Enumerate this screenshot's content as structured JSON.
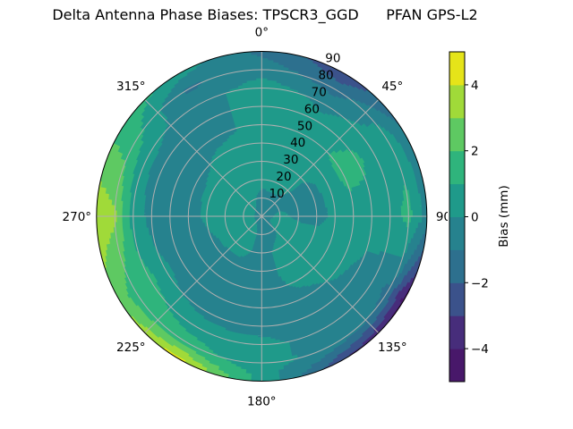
{
  "chart_data": {
    "type": "heatmap",
    "subtype": "polar-filled-contour",
    "title": "Delta Antenna Phase Biases: TPSCR3_GGD      PFAN GPS-L2",
    "theta_direction": "clockwise",
    "theta_zero": "top",
    "theta_tick_labels": [
      "0°",
      "45°",
      "90°",
      "135°",
      "180°",
      "225°",
      "270°",
      "315°"
    ],
    "theta_ticks": [
      0,
      45,
      90,
      135,
      180,
      225,
      270,
      315
    ],
    "r_tick_labels": [
      "10",
      "20",
      "30",
      "40",
      "50",
      "60",
      "70",
      "80",
      "90"
    ],
    "r_ticks": [
      10,
      20,
      30,
      40,
      50,
      60,
      70,
      80,
      90
    ],
    "rlim": [
      0,
      90
    ],
    "grid": true,
    "colorbar": {
      "label": "Bias (mm)",
      "levels": [
        -5,
        -4,
        -3,
        -2,
        -1,
        0,
        1,
        2,
        3,
        4,
        5
      ],
      "tick_values": [
        -4,
        -2,
        0,
        2,
        4
      ],
      "tick_labels": [
        "−4",
        "−2",
        "0",
        "2",
        "4"
      ],
      "colors": [
        "#48186a",
        "#472d7b",
        "#3b528b",
        "#2d708e",
        "#26828e",
        "#1f9a8a",
        "#2fb47c",
        "#5ec962",
        "#a0da39",
        "#e5e419"
      ]
    },
    "grid_azimuth": [
      0,
      30,
      60,
      90,
      120,
      150,
      180,
      210,
      240,
      270,
      300,
      330
    ],
    "grid_radius": [
      0,
      10,
      20,
      30,
      40,
      50,
      60,
      70,
      80,
      90
    ],
    "values": [
      [
        -0.3,
        -0.3,
        -0.3,
        -0.3,
        -0.3,
        -0.3,
        -0.3,
        -0.3,
        -0.3,
        -0.3,
        -0.3,
        -0.3
      ],
      [
        -0.3,
        -0.3,
        -0.2,
        0.2,
        0.3,
        -0.3,
        -0.3,
        0.3,
        0.5,
        0.5,
        0.4,
        0.2
      ],
      [
        0.3,
        0.5,
        -0.3,
        -0.2,
        0.5,
        0.3,
        -0.4,
        0.3,
        0.4,
        0.6,
        0.5,
        0.5
      ],
      [
        0.2,
        0.5,
        -0.2,
        -0.3,
        0.5,
        0.5,
        -0.5,
        -0.3,
        -0.3,
        0.2,
        0.3,
        0.6
      ],
      [
        0.3,
        0.4,
        0.3,
        0.2,
        0.6,
        0.2,
        -0.5,
        -0.5,
        -0.5,
        -0.5,
        -0.4,
        0.3
      ],
      [
        0.4,
        0.5,
        1.4,
        0.5,
        0.3,
        -0.3,
        -0.5,
        -0.5,
        -0.4,
        -0.5,
        -0.5,
        -0.4
      ],
      [
        0.5,
        0.3,
        1.2,
        0.5,
        -0.3,
        -0.3,
        -0.4,
        -0.3,
        0.2,
        -0.3,
        -0.5,
        -0.5
      ],
      [
        0.5,
        -0.3,
        0.5,
        0.6,
        -0.5,
        -0.5,
        0.3,
        0.5,
        1.3,
        0.5,
        0.3,
        -0.5
      ],
      [
        -0.5,
        -1.5,
        0.6,
        1.3,
        -1.3,
        -0.5,
        0.4,
        1.5,
        1.5,
        3.2,
        1.5,
        -1.2
      ],
      [
        -1.3,
        -2.8,
        -0.8,
        -0.5,
        -4.6,
        -3.0,
        0.6,
        4.5,
        2.5,
        3.8,
        1.8,
        0.5
      ]
    ]
  }
}
